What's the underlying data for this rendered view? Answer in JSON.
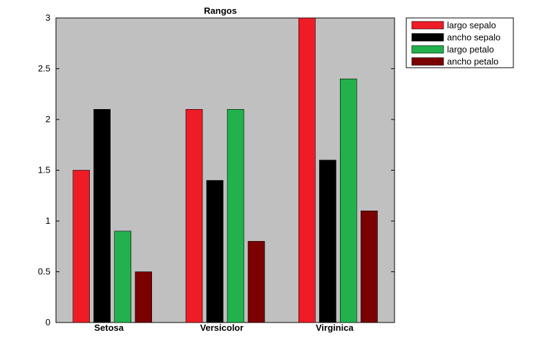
{
  "chart_data": {
    "type": "bar",
    "title": "Rangos",
    "categories": [
      "Setosa",
      "Versicolor",
      "Virginica"
    ],
    "series": [
      {
        "name": "largo sepalo",
        "color": "#ee1c25",
        "values": [
          1.5,
          2.1,
          3.0
        ]
      },
      {
        "name": "ancho sepalo",
        "color": "#000000",
        "values": [
          2.1,
          1.4,
          1.6
        ]
      },
      {
        "name": "largo petalo",
        "color": "#22b14c",
        "values": [
          0.9,
          2.1,
          2.4
        ]
      },
      {
        "name": "ancho petalo",
        "color": "#7b0000",
        "values": [
          0.5,
          0.8,
          1.1
        ]
      }
    ],
    "ylim": [
      0,
      3
    ],
    "yticks": [
      "0",
      "0.5",
      "1",
      "1.5",
      "2",
      "2.5",
      "3"
    ],
    "xlabel": "",
    "ylabel": "",
    "grid": false,
    "legend_position": "top-right",
    "plot_background": "#c0c0c0"
  }
}
